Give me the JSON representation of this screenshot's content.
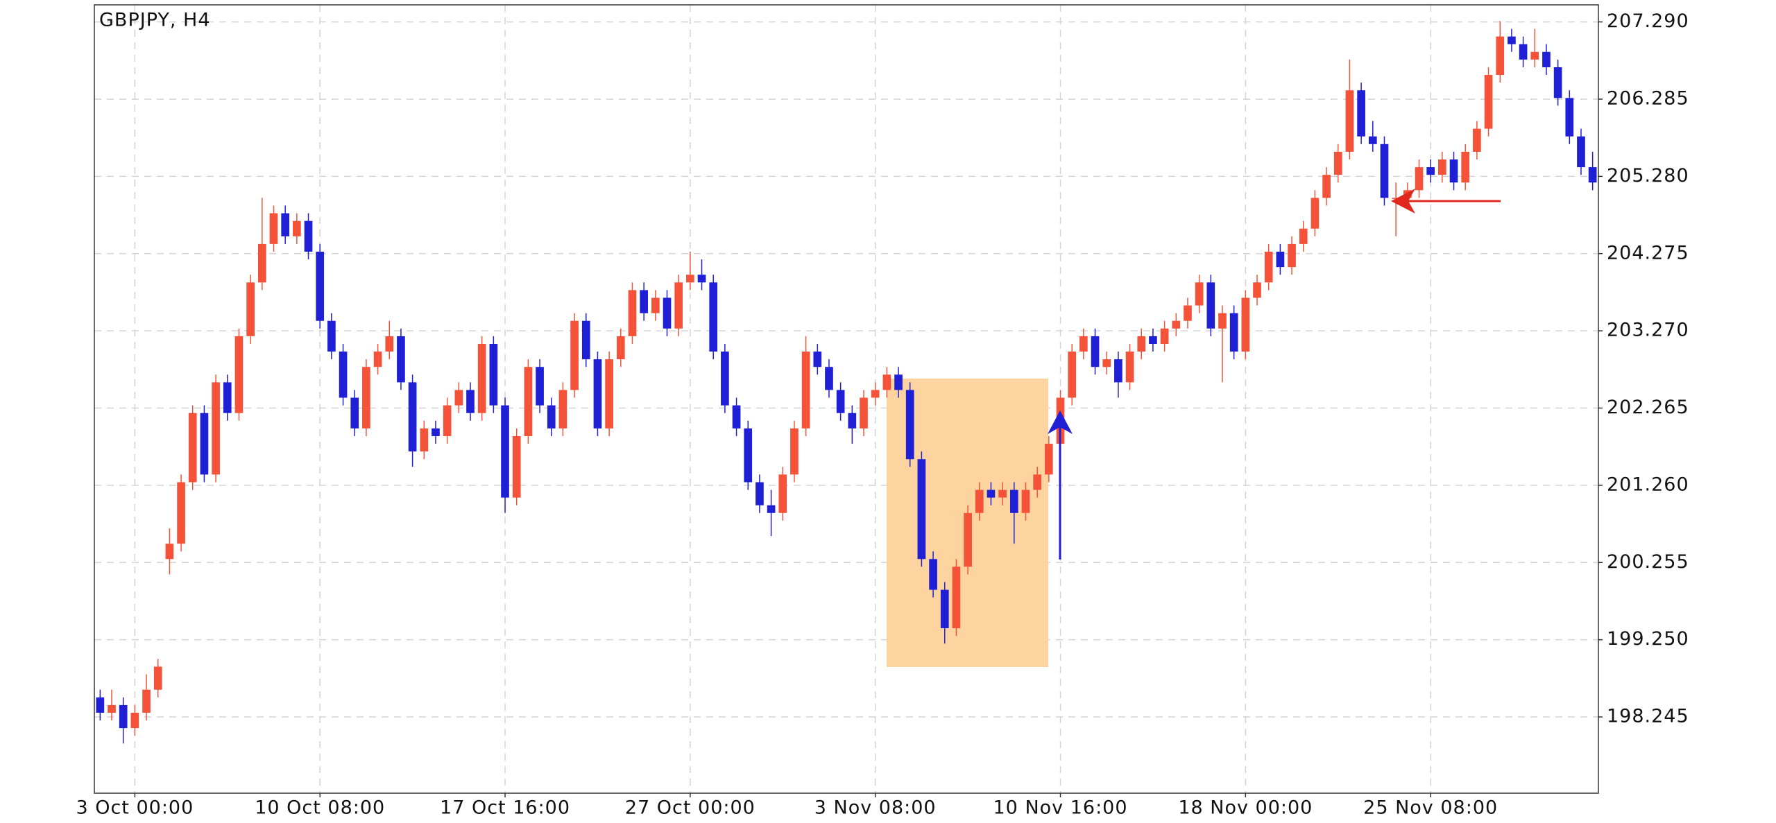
{
  "chart_data": {
    "type": "candlestick",
    "title": "GBPJPY, H4",
    "up_color": "#f4533a",
    "down_color": "#1f1fd6",
    "grid": true,
    "ylim": [
      197.253,
      207.512
    ],
    "yticks": [
      198.245,
      {
        "value": 199.25,
        "label": "199.250"
      },
      200.255,
      {
        "value": 201.26,
        "label": "201.260"
      },
      202.265,
      {
        "value": 203.27,
        "label": "203.270"
      },
      204.275,
      {
        "value": 205.28,
        "label": "205.280"
      },
      206.285,
      {
        "value": 207.29,
        "label": "207.290"
      }
    ],
    "categories": [
      null,
      null,
      null,
      "3 Oct 00:00",
      null,
      null,
      null,
      null,
      null,
      null,
      null,
      null,
      null,
      null,
      null,
      null,
      null,
      null,
      null,
      "10 Oct 08:00",
      null,
      null,
      null,
      null,
      null,
      null,
      null,
      null,
      null,
      null,
      null,
      null,
      null,
      null,
      null,
      "17 Oct 16:00",
      null,
      null,
      null,
      null,
      null,
      null,
      null,
      null,
      null,
      null,
      null,
      null,
      null,
      null,
      null,
      "27 Oct 00:00",
      null,
      null,
      null,
      null,
      null,
      null,
      null,
      null,
      null,
      null,
      null,
      null,
      null,
      null,
      null,
      "3 Nov 08:00",
      null,
      null,
      null,
      null,
      null,
      null,
      null,
      null,
      null,
      null,
      null,
      null,
      null,
      null,
      null,
      "10 Nov 16:00",
      null,
      null,
      null,
      null,
      null,
      null,
      null,
      null,
      null,
      null,
      null,
      null,
      null,
      null,
      null,
      "18 Nov 00:00",
      null,
      null,
      null,
      null,
      null,
      null,
      null,
      null,
      null,
      null,
      null,
      null,
      null,
      null,
      null,
      "25 Nov 08:00",
      null,
      null,
      null,
      null,
      null,
      null,
      null,
      null,
      null,
      null,
      null,
      null,
      null,
      null
    ],
    "ohlc": [
      [
        198.5,
        198.6,
        198.2,
        198.3
      ],
      [
        198.3,
        198.6,
        198.2,
        198.4
      ],
      [
        198.4,
        198.5,
        197.9,
        198.1
      ],
      [
        198.1,
        198.4,
        198.0,
        198.3
      ],
      [
        198.3,
        198.8,
        198.2,
        198.6
      ],
      [
        198.6,
        199.0,
        198.5,
        198.9
      ],
      [
        200.3,
        200.7,
        200.1,
        200.5
      ],
      [
        200.5,
        201.4,
        200.4,
        201.3
      ],
      [
        201.3,
        202.3,
        201.2,
        202.2
      ],
      [
        202.2,
        202.3,
        201.3,
        201.4
      ],
      [
        201.4,
        202.7,
        201.3,
        202.6
      ],
      [
        202.6,
        202.7,
        202.1,
        202.2
      ],
      [
        202.2,
        203.3,
        202.1,
        203.2
      ],
      [
        203.2,
        204.0,
        203.1,
        203.9
      ],
      [
        203.9,
        205.0,
        203.8,
        204.4
      ],
      [
        204.4,
        204.9,
        204.3,
        204.8
      ],
      [
        204.8,
        204.9,
        204.4,
        204.5
      ],
      [
        204.5,
        204.8,
        204.4,
        204.7
      ],
      [
        204.7,
        204.8,
        204.2,
        204.3
      ],
      [
        204.3,
        204.4,
        203.3,
        203.4
      ],
      [
        203.4,
        203.5,
        202.9,
        203.0
      ],
      [
        203.0,
        203.1,
        202.3,
        202.4
      ],
      [
        202.4,
        202.5,
        201.9,
        202.0
      ],
      [
        202.0,
        202.9,
        201.9,
        202.8
      ],
      [
        202.8,
        203.1,
        202.7,
        203.0
      ],
      [
        203.0,
        203.4,
        202.9,
        203.2
      ],
      [
        203.2,
        203.3,
        202.5,
        202.6
      ],
      [
        202.6,
        202.7,
        201.5,
        201.7
      ],
      [
        201.7,
        202.1,
        201.6,
        202.0
      ],
      [
        202.0,
        202.1,
        201.8,
        201.9
      ],
      [
        201.9,
        202.4,
        201.8,
        202.3
      ],
      [
        202.3,
        202.6,
        202.2,
        202.5
      ],
      [
        202.5,
        202.6,
        202.1,
        202.2
      ],
      [
        202.2,
        203.2,
        202.1,
        203.1
      ],
      [
        203.1,
        203.2,
        202.2,
        202.3
      ],
      [
        202.3,
        202.4,
        200.9,
        201.1
      ],
      [
        201.1,
        202.0,
        201.0,
        201.9
      ],
      [
        201.9,
        202.9,
        201.8,
        202.8
      ],
      [
        202.8,
        202.9,
        202.2,
        202.3
      ],
      [
        202.3,
        202.4,
        201.9,
        202.0
      ],
      [
        202.0,
        202.6,
        201.9,
        202.5
      ],
      [
        202.5,
        203.5,
        202.4,
        203.4
      ],
      [
        203.4,
        203.5,
        202.8,
        202.9
      ],
      [
        202.9,
        203.0,
        201.9,
        202.0
      ],
      [
        202.0,
        203.0,
        201.9,
        202.9
      ],
      [
        202.9,
        203.3,
        202.8,
        203.2
      ],
      [
        203.2,
        203.9,
        203.1,
        203.8
      ],
      [
        203.8,
        203.9,
        203.4,
        203.5
      ],
      [
        203.5,
        203.8,
        203.4,
        203.7
      ],
      [
        203.7,
        203.8,
        203.2,
        203.3
      ],
      [
        203.3,
        204.0,
        203.2,
        203.9
      ],
      [
        203.9,
        204.3,
        203.8,
        204.0
      ],
      [
        204.0,
        204.2,
        203.8,
        203.9
      ],
      [
        203.9,
        204.0,
        202.9,
        203.0
      ],
      [
        203.0,
        203.1,
        202.2,
        202.3
      ],
      [
        202.3,
        202.4,
        201.9,
        202.0
      ],
      [
        202.0,
        202.1,
        201.2,
        201.3
      ],
      [
        201.3,
        201.4,
        200.9,
        201.0
      ],
      [
        201.0,
        201.2,
        200.6,
        200.9
      ],
      [
        200.9,
        201.5,
        200.8,
        201.4
      ],
      [
        201.4,
        202.1,
        201.3,
        202.0
      ],
      [
        202.0,
        203.2,
        201.9,
        203.0
      ],
      [
        203.0,
        203.1,
        202.7,
        202.8
      ],
      [
        202.8,
        202.9,
        202.4,
        202.5
      ],
      [
        202.5,
        202.6,
        202.1,
        202.2
      ],
      [
        202.2,
        202.3,
        201.8,
        202.0
      ],
      [
        202.0,
        202.5,
        201.9,
        202.4
      ],
      [
        202.4,
        202.6,
        202.3,
        202.5
      ],
      [
        202.5,
        202.8,
        202.4,
        202.7
      ],
      [
        202.7,
        202.8,
        202.4,
        202.5
      ],
      [
        202.5,
        202.6,
        201.5,
        201.6
      ],
      [
        201.6,
        201.7,
        200.2,
        200.3
      ],
      [
        200.3,
        200.4,
        199.8,
        199.9
      ],
      [
        199.9,
        200.0,
        199.2,
        199.4
      ],
      [
        199.4,
        200.3,
        199.3,
        200.2
      ],
      [
        200.2,
        201.0,
        200.1,
        200.9
      ],
      [
        200.9,
        201.3,
        200.8,
        201.2
      ],
      [
        201.2,
        201.3,
        201.0,
        201.1
      ],
      [
        201.1,
        201.3,
        201.0,
        201.2
      ],
      [
        201.2,
        201.3,
        200.5,
        200.9
      ],
      [
        200.9,
        201.3,
        200.8,
        201.2
      ],
      [
        201.2,
        201.5,
        201.1,
        201.4
      ],
      [
        201.4,
        201.9,
        201.3,
        201.8
      ],
      [
        201.8,
        202.5,
        201.7,
        202.4
      ],
      [
        202.4,
        203.1,
        202.3,
        203.0
      ],
      [
        203.0,
        203.3,
        202.9,
        203.2
      ],
      [
        203.2,
        203.3,
        202.7,
        202.8
      ],
      [
        202.8,
        203.0,
        202.7,
        202.9
      ],
      [
        202.9,
        203.0,
        202.4,
        202.6
      ],
      [
        202.6,
        203.1,
        202.5,
        203.0
      ],
      [
        203.0,
        203.3,
        202.9,
        203.2
      ],
      [
        203.2,
        203.3,
        203.0,
        203.1
      ],
      [
        203.1,
        203.4,
        203.0,
        203.3
      ],
      [
        203.3,
        203.5,
        203.2,
        203.4
      ],
      [
        203.4,
        203.7,
        203.3,
        203.6
      ],
      [
        203.6,
        204.0,
        203.5,
        203.9
      ],
      [
        203.9,
        204.0,
        203.2,
        203.3
      ],
      [
        203.3,
        203.6,
        202.6,
        203.5
      ],
      [
        203.5,
        203.6,
        202.9,
        203.0
      ],
      [
        203.0,
        203.8,
        202.9,
        203.7
      ],
      [
        203.7,
        204.0,
        203.6,
        203.9
      ],
      [
        203.9,
        204.4,
        203.8,
        204.3
      ],
      [
        204.3,
        204.4,
        204.0,
        204.1
      ],
      [
        204.1,
        204.5,
        204.0,
        204.4
      ],
      [
        204.4,
        204.7,
        204.3,
        204.6
      ],
      [
        204.6,
        205.1,
        204.5,
        205.0
      ],
      [
        205.0,
        205.4,
        204.9,
        205.3
      ],
      [
        205.3,
        205.7,
        205.2,
        205.6
      ],
      [
        205.6,
        206.8,
        205.5,
        206.4
      ],
      [
        206.4,
        206.5,
        205.7,
        205.8
      ],
      [
        205.8,
        206.0,
        205.6,
        205.7
      ],
      [
        205.7,
        205.8,
        204.9,
        205.0
      ],
      [
        205.0,
        205.2,
        204.5,
        205.0
      ],
      [
        205.0,
        205.2,
        204.9,
        205.1
      ],
      [
        205.1,
        205.5,
        205.0,
        205.4
      ],
      [
        205.4,
        205.5,
        205.2,
        205.3
      ],
      [
        205.3,
        205.6,
        205.2,
        205.5
      ],
      [
        205.5,
        205.6,
        205.1,
        205.2
      ],
      [
        205.2,
        205.7,
        205.1,
        205.6
      ],
      [
        205.6,
        206.0,
        205.5,
        205.9
      ],
      [
        205.9,
        206.7,
        205.8,
        206.6
      ],
      [
        206.6,
        207.3,
        206.5,
        207.1
      ],
      [
        207.1,
        207.2,
        206.9,
        207.0
      ],
      [
        207.0,
        207.1,
        206.7,
        206.8
      ],
      [
        206.8,
        207.2,
        206.7,
        206.9
      ],
      [
        206.9,
        207.0,
        206.6,
        206.7
      ],
      [
        206.7,
        206.8,
        206.2,
        206.3
      ],
      [
        206.3,
        206.4,
        205.7,
        205.8
      ],
      [
        205.8,
        205.9,
        205.3,
        205.4
      ],
      [
        205.4,
        205.6,
        205.1,
        205.2
      ]
    ]
  }
}
